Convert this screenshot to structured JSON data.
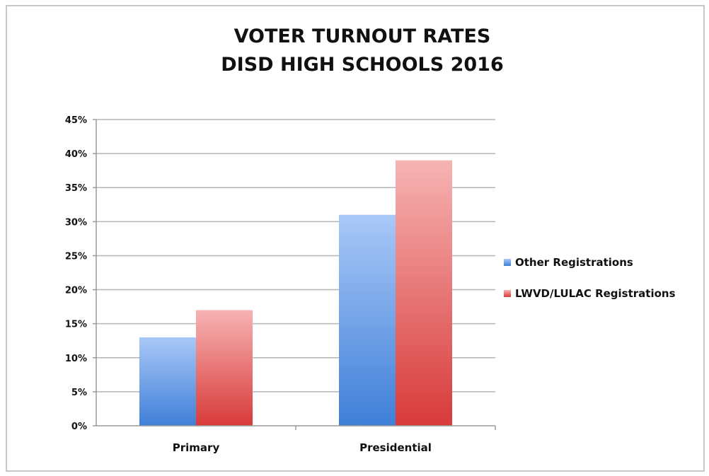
{
  "chart_data": {
    "type": "bar",
    "title": [
      "VOTER TURNOUT RATES",
      "DISD HIGH SCHOOLS 2016"
    ],
    "categories": [
      "Primary",
      "Presidential"
    ],
    "series": [
      {
        "name": "Other Registrations",
        "values": [
          13,
          31
        ],
        "color": "#5b92e0"
      },
      {
        "name": "LWVD/LULAC Registrations",
        "values": [
          17,
          39
        ],
        "color": "#e55a5a"
      }
    ],
    "ylim": [
      0,
      45
    ],
    "yticks": [
      0,
      5,
      10,
      15,
      20,
      25,
      30,
      35,
      40,
      45
    ],
    "ytick_labels": [
      "0%",
      "5%",
      "10%",
      "15%",
      "20%",
      "25%",
      "30%",
      "35%",
      "40%",
      "45%"
    ],
    "grid": true,
    "legend_position": "right"
  }
}
